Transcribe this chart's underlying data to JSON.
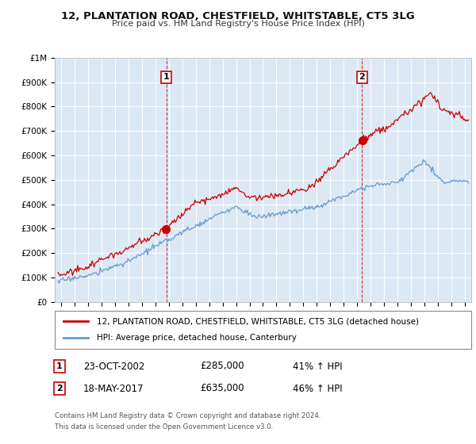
{
  "title": "12, PLANTATION ROAD, CHESTFIELD, WHITSTABLE, CT5 3LG",
  "subtitle": "Price paid vs. HM Land Registry's House Price Index (HPI)",
  "background_color": "#ffffff",
  "plot_bg_color": "#dce9f5",
  "grid_color": "#ffffff",
  "red_line_color": "#cc0000",
  "blue_line_color": "#6699cc",
  "transaction1": {
    "date": "23-OCT-2002",
    "price": 285000,
    "hpi_pct": "41%",
    "label": "1",
    "x": 2002.81
  },
  "transaction2": {
    "date": "18-MAY-2017",
    "price": 635000,
    "hpi_pct": "46%",
    "label": "2",
    "x": 2017.38
  },
  "legend_red": "12, PLANTATION ROAD, CHESTFIELD, WHITSTABLE, CT5 3LG (detached house)",
  "legend_blue": "HPI: Average price, detached house, Canterbury",
  "footnote1": "Contains HM Land Registry data © Crown copyright and database right 2024.",
  "footnote2": "This data is licensed under the Open Government Licence v3.0.",
  "xmin": 1994.5,
  "xmax": 2025.5,
  "ymin": 0,
  "ymax": 1000000,
  "yticks": [
    0,
    100000,
    200000,
    300000,
    400000,
    500000,
    600000,
    700000,
    800000,
    900000,
    1000000
  ],
  "ytick_labels": [
    "£0",
    "£100K",
    "£200K",
    "£300K",
    "£400K",
    "£500K",
    "£600K",
    "£700K",
    "£800K",
    "£900K",
    "£1M"
  ],
  "xticks": [
    1995,
    1996,
    1997,
    1998,
    1999,
    2000,
    2001,
    2002,
    2003,
    2004,
    2005,
    2006,
    2007,
    2008,
    2009,
    2010,
    2011,
    2012,
    2013,
    2014,
    2015,
    2016,
    2017,
    2018,
    2019,
    2020,
    2021,
    2022,
    2023,
    2024,
    2025
  ]
}
